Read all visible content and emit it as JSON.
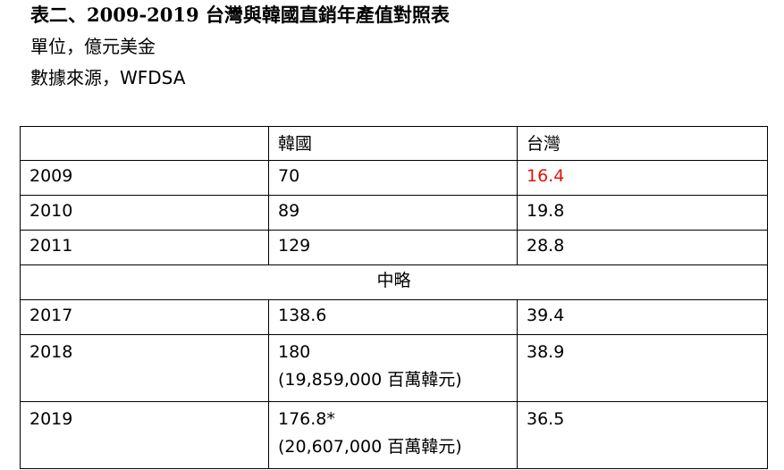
{
  "document": {
    "title": "表二、2009-2019 台灣與韓國直銷年產值對照表",
    "unit": "單位，億元美金",
    "source": "數據來源，WFDSA"
  },
  "table": {
    "headers": [
      "",
      "韓國",
      "台灣"
    ],
    "rows": [
      {
        "year": "2009",
        "korea": "70",
        "korea_note": "",
        "taiwan": "16.4"
      },
      {
        "year": "2010",
        "korea": "89",
        "korea_note": "",
        "taiwan": "19.8"
      },
      {
        "year": "2011",
        "korea": "129",
        "korea_note": "",
        "taiwan": "28.8"
      },
      {
        "omitted_label": "中略"
      },
      {
        "year": "2017",
        "korea": "138.6",
        "korea_note": "",
        "taiwan": "39.4"
      },
      {
        "year": "2018",
        "korea": "180",
        "korea_note": "(19,859,000 百萬韓元)",
        "taiwan": "38.9"
      },
      {
        "year": "2019",
        "korea": "176.8*",
        "korea_note": "(20,607,000 百萬韓元)",
        "taiwan": "36.5"
      }
    ],
    "highlight_color": "#e0140b"
  }
}
